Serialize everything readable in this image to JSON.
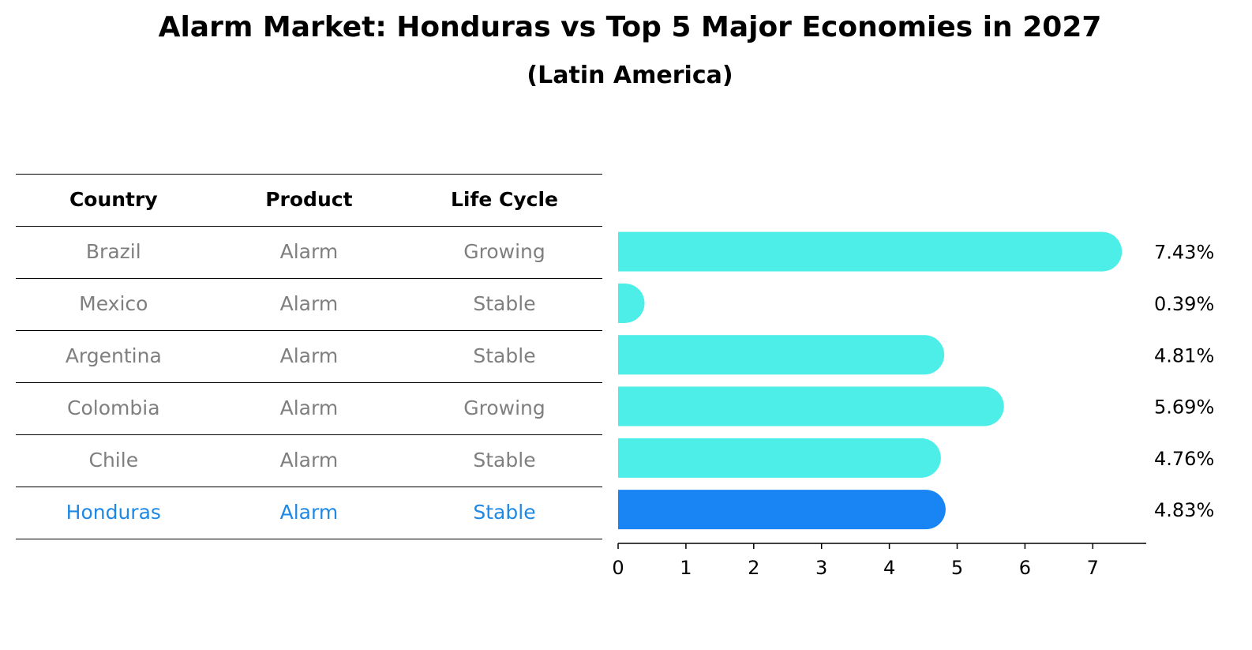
{
  "title": "Alarm Market: Honduras vs Top 5 Major Economies in 2027",
  "subtitle": "(Latin America)",
  "table": {
    "headers": [
      "Country",
      "Product",
      "Life Cycle"
    ],
    "rows": [
      [
        "Brazil",
        "Alarm",
        "Growing"
      ],
      [
        "Mexico",
        "Alarm",
        "Stable"
      ],
      [
        "Argentina",
        "Alarm",
        "Stable"
      ],
      [
        "Colombia",
        "Alarm",
        "Growing"
      ],
      [
        "Chile",
        "Alarm",
        "Stable"
      ],
      [
        "Honduras",
        "Alarm",
        "Stable"
      ]
    ]
  },
  "colors": {
    "bar": "#4dede8",
    "highlight": "#1984f4",
    "muted_text": "#7f7f7f",
    "highlight_text": "#1e88e5"
  },
  "chart_data": {
    "type": "bar",
    "orientation": "horizontal",
    "categories": [
      "Brazil",
      "Mexico",
      "Argentina",
      "Colombia",
      "Chile",
      "Honduras"
    ],
    "values": [
      7.43,
      0.39,
      4.81,
      5.69,
      4.76,
      4.83
    ],
    "value_labels": [
      "7.43%",
      "0.39%",
      "4.81%",
      "5.69%",
      "4.76%",
      "4.83%"
    ],
    "highlight": "Honduras",
    "xlim": [
      0,
      7.8
    ],
    "xticks": [
      "0",
      "1",
      "2",
      "3",
      "4",
      "5",
      "6",
      "7"
    ],
    "grid": false
  }
}
